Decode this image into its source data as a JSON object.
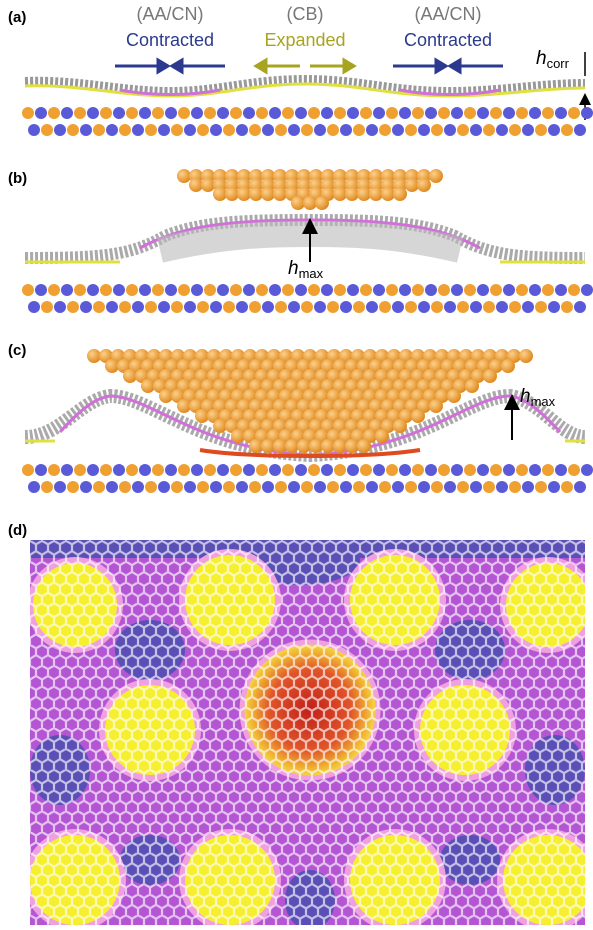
{
  "panels": [
    {
      "label": "(a)",
      "annotations": [
        {
          "region": "(AA/CN)",
          "state": "Contracted"
        },
        {
          "region": "(CB)",
          "state": "Expanded"
        },
        {
          "region": "(AA/CN)",
          "state": "Contracted"
        }
      ],
      "height_label": {
        "symbol": "h",
        "subscript": "corr"
      }
    },
    {
      "label": "(b)",
      "height_label": {
        "symbol": "h",
        "subscript": "max"
      }
    },
    {
      "label": "(c)",
      "height_label": {
        "symbol": "h",
        "subscript": "max"
      }
    },
    {
      "label": "(d)"
    }
  ]
}
